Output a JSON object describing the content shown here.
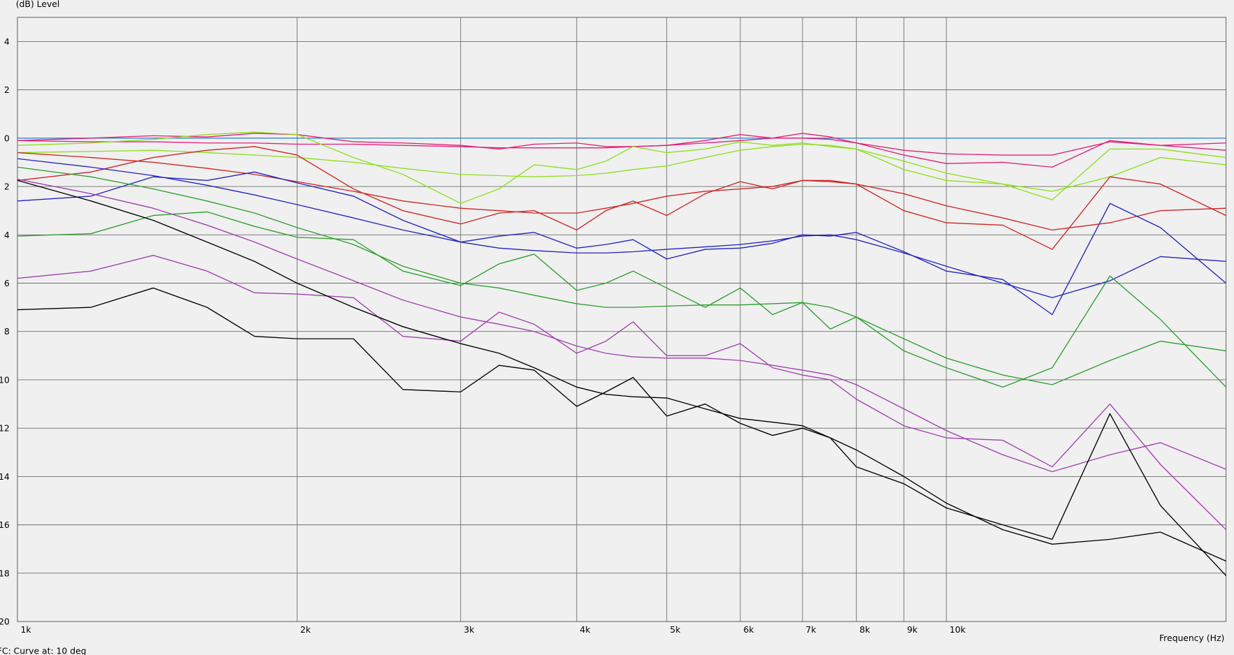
{
  "chart_data": {
    "type": "line",
    "ylabel": "(dB)  Level",
    "xlabel": "Frequency  (Hz)",
    "caption": "FC: Curve at: 10 deg",
    "log_x": true,
    "grid": true,
    "xlim": [
      1000,
      20000
    ],
    "ylim": [
      -20,
      5
    ],
    "xticks": [
      {
        "value": 1000,
        "label": "1k"
      },
      {
        "value": 2000,
        "label": "2k"
      },
      {
        "value": 3000,
        "label": "3k"
      },
      {
        "value": 4000,
        "label": "4k"
      },
      {
        "value": 5000,
        "label": "5k"
      },
      {
        "value": 6000,
        "label": "6k"
      },
      {
        "value": 7000,
        "label": "7k"
      },
      {
        "value": 8000,
        "label": "8k"
      },
      {
        "value": 9000,
        "label": "9k"
      },
      {
        "value": 10000,
        "label": "10k"
      }
    ],
    "yticks": [
      4,
      2,
      0,
      {
        "value": -2,
        "label": "2"
      },
      {
        "value": -4,
        "label": "4"
      },
      {
        "value": -6,
        "label": "6"
      },
      {
        "value": -8,
        "label": "8"
      },
      {
        "value": -10,
        "label": "10"
      },
      {
        "value": -12,
        "label": "12"
      },
      {
        "value": -14,
        "label": "14"
      },
      {
        "value": -16,
        "label": "16"
      },
      {
        "value": -18,
        "label": "18"
      },
      {
        "value": -20,
        "label": "20"
      }
    ],
    "x": [
      1000,
      1200,
      1400,
      1600,
      1800,
      2000,
      2300,
      2600,
      3000,
      3300,
      3600,
      4000,
      4300,
      4600,
      5000,
      5500,
      6000,
      6500,
      7000,
      7500,
      8000,
      9000,
      10000,
      11500,
      13000,
      15000,
      17000,
      20000
    ],
    "series": [
      {
        "color": "#3a8ad4",
        "values": [
          0,
          0,
          0,
          0,
          0,
          0,
          0,
          0,
          0,
          0,
          0,
          0,
          0,
          0,
          0,
          0,
          0,
          0,
          0,
          0,
          0,
          0,
          0,
          0,
          0,
          0,
          0,
          0
        ]
      },
      {
        "color": "#e0207a",
        "values": [
          -0.1,
          -0.15,
          -0.15,
          -0.2,
          -0.2,
          -0.25,
          -0.25,
          -0.3,
          -0.35,
          -0.4,
          -0.4,
          -0.4,
          -0.4,
          -0.35,
          -0.3,
          -0.2,
          -0.1,
          0,
          0,
          -0.05,
          -0.2,
          -0.5,
          -0.65,
          -0.7,
          -0.7,
          -0.15,
          -0.3,
          -0.5
        ]
      },
      {
        "color": "#e0207a",
        "values": [
          -0.1,
          0,
          0.1,
          0.05,
          0.2,
          0.15,
          -0.15,
          -0.2,
          -0.3,
          -0.45,
          -0.25,
          -0.2,
          -0.35,
          -0.35,
          -0.3,
          -0.1,
          0.15,
          0,
          0.2,
          0.05,
          -0.2,
          -0.7,
          -1.05,
          -1.0,
          -1.2,
          -0.1,
          -0.3,
          -0.2
        ]
      },
      {
        "color": "#8ee01e",
        "values": [
          -0.6,
          -0.55,
          -0.5,
          -0.6,
          -0.7,
          -0.8,
          -1.0,
          -1.25,
          -1.5,
          -1.55,
          -1.6,
          -1.55,
          -1.45,
          -1.3,
          -1.15,
          -0.8,
          -0.5,
          -0.35,
          -0.25,
          -0.3,
          -0.45,
          -0.95,
          -1.45,
          -1.9,
          -2.2,
          -1.6,
          -0.8,
          -1.1
        ]
      },
      {
        "color": "#8ee01e",
        "values": [
          -0.3,
          -0.2,
          -0.05,
          0.15,
          0.25,
          0.15,
          -0.8,
          -1.5,
          -2.7,
          -2.1,
          -1.1,
          -1.3,
          -0.95,
          -0.35,
          -0.6,
          -0.45,
          -0.15,
          -0.3,
          -0.2,
          -0.35,
          -0.45,
          -1.3,
          -1.75,
          -1.9,
          -2.55,
          -0.45,
          -0.45,
          -0.8
        ]
      },
      {
        "color": "#d02424",
        "values": [
          -0.6,
          -0.8,
          -1.0,
          -1.25,
          -1.5,
          -1.8,
          -2.2,
          -2.6,
          -2.9,
          -3.0,
          -3.1,
          -3.1,
          -2.9,
          -2.7,
          -2.4,
          -2.2,
          -2.1,
          -2.0,
          -1.75,
          -1.75,
          -1.9,
          -2.3,
          -2.8,
          -3.3,
          -3.8,
          -3.5,
          -3.0,
          -2.9
        ]
      },
      {
        "color": "#d02424",
        "values": [
          -1.75,
          -1.4,
          -0.8,
          -0.5,
          -0.35,
          -0.7,
          -2.1,
          -3.0,
          -3.55,
          -3.1,
          -3.0,
          -3.8,
          -3.0,
          -2.6,
          -3.2,
          -2.3,
          -1.8,
          -2.1,
          -1.75,
          -1.8,
          -1.9,
          -3.0,
          -3.5,
          -3.6,
          -4.6,
          -1.6,
          -1.9,
          -3.2
        ]
      },
      {
        "color": "#2323c0",
        "values": [
          -0.85,
          -1.2,
          -1.55,
          -1.95,
          -2.35,
          -2.75,
          -3.3,
          -3.8,
          -4.3,
          -4.55,
          -4.65,
          -4.75,
          -4.75,
          -4.7,
          -4.6,
          -4.5,
          -4.4,
          -4.25,
          -4.05,
          -4.0,
          -4.2,
          -4.75,
          -5.3,
          -6.0,
          -6.6,
          -5.9,
          -4.9,
          -5.1
        ]
      },
      {
        "color": "#2323c0",
        "values": [
          -2.6,
          -2.4,
          -1.6,
          -1.75,
          -1.4,
          -1.85,
          -2.4,
          -3.4,
          -4.3,
          -4.05,
          -3.9,
          -4.55,
          -4.4,
          -4.2,
          -5.0,
          -4.6,
          -4.55,
          -4.35,
          -4.0,
          -4.05,
          -3.9,
          -4.7,
          -5.5,
          -5.85,
          -7.3,
          -2.7,
          -3.7,
          -6.0
        ]
      },
      {
        "color": "#2e9e2e",
        "values": [
          -1.2,
          -1.6,
          -2.1,
          -2.6,
          -3.1,
          -3.7,
          -4.4,
          -5.3,
          -6.0,
          -6.2,
          -6.5,
          -6.85,
          -7.0,
          -7.0,
          -6.95,
          -6.9,
          -6.9,
          -6.85,
          -6.8,
          -7.0,
          -7.4,
          -8.3,
          -9.1,
          -9.8,
          -10.2,
          -9.2,
          -8.4,
          -8.8
        ]
      },
      {
        "color": "#2e9e2e",
        "values": [
          -4.05,
          -3.95,
          -3.2,
          -3.05,
          -3.65,
          -4.1,
          -4.2,
          -5.5,
          -6.1,
          -5.2,
          -4.8,
          -6.3,
          -6.0,
          -5.5,
          -6.2,
          -7.0,
          -6.2,
          -7.3,
          -6.8,
          -7.9,
          -7.4,
          -8.8,
          -9.5,
          -10.3,
          -9.5,
          -5.7,
          -7.5,
          -10.3
        ]
      },
      {
        "color": "#a040b0",
        "values": [
          -1.7,
          -2.3,
          -2.9,
          -3.6,
          -4.3,
          -5.0,
          -5.9,
          -6.7,
          -7.4,
          -7.7,
          -8.0,
          -8.6,
          -8.9,
          -9.05,
          -9.1,
          -9.1,
          -9.2,
          -9.4,
          -9.6,
          -9.8,
          -10.2,
          -11.2,
          -12.1,
          -13.1,
          -13.8,
          -13.1,
          -12.6,
          -13.7
        ]
      },
      {
        "color": "#a040b0",
        "values": [
          -5.8,
          -5.5,
          -4.85,
          -5.5,
          -6.4,
          -6.45,
          -6.6,
          -8.2,
          -8.4,
          -7.2,
          -7.7,
          -8.9,
          -8.4,
          -7.6,
          -9.0,
          -9.0,
          -8.5,
          -9.5,
          -9.8,
          -10.0,
          -10.8,
          -11.9,
          -12.4,
          -12.5,
          -13.6,
          -11.0,
          -13.5,
          -16.2
        ]
      },
      {
        "color": "#000000",
        "values": [
          -1.75,
          -2.6,
          -3.4,
          -4.3,
          -5.1,
          -6.0,
          -7.0,
          -7.8,
          -8.5,
          -8.9,
          -9.5,
          -10.3,
          -10.6,
          -10.7,
          -10.75,
          -11.2,
          -11.6,
          -11.75,
          -11.9,
          -12.4,
          -12.9,
          -14.0,
          -15.1,
          -16.2,
          -16.8,
          -16.6,
          -16.3,
          -17.5
        ]
      },
      {
        "color": "#000000",
        "values": [
          -7.1,
          -7.0,
          -6.2,
          -7.0,
          -8.2,
          -8.3,
          -8.3,
          -10.4,
          -10.5,
          -9.4,
          -9.6,
          -11.1,
          -10.5,
          -9.9,
          -11.5,
          -11.0,
          -11.8,
          -12.3,
          -12.0,
          -12.4,
          -13.6,
          -14.3,
          -15.3,
          -16.0,
          -16.6,
          -11.4,
          -15.2,
          -18.1
        ]
      }
    ]
  }
}
